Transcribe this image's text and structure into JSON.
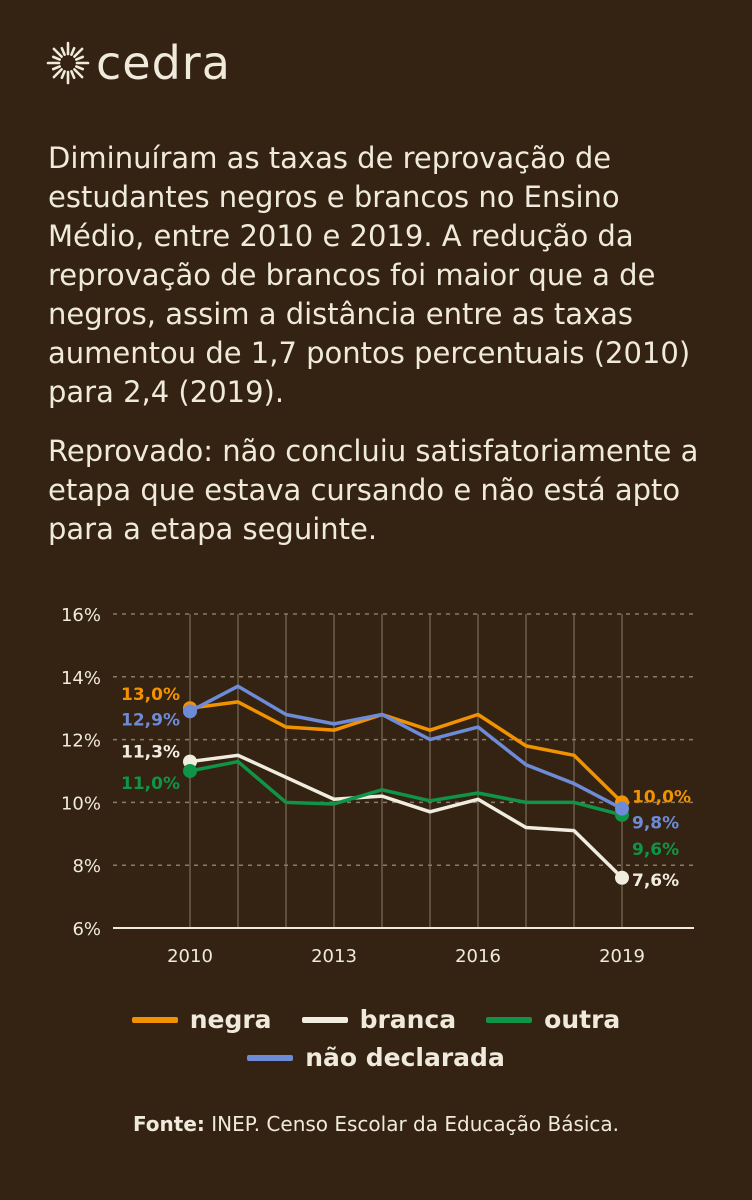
{
  "brand": {
    "name": "cedra"
  },
  "paragraphs": [
    "Diminuíram as taxas de reprovação de estudantes negros e brancos no Ensino Médio, entre 2010 e 2019. A redução da reprovação de brancos foi maior que a de negros, assim a distância entre as taxas aumentou de 1,7 pontos percentuais (2010) para 2,4 (2019).",
    "Reprovado: não concluiu satisfatoriamente a etapa que estava cursando e não está apto para a etapa seguinte."
  ],
  "chart_data": {
    "type": "line",
    "title": "",
    "xlabel": "",
    "ylabel": "",
    "x": [
      2010,
      2011,
      2012,
      2013,
      2014,
      2015,
      2016,
      2017,
      2018,
      2019
    ],
    "x_tick_labels": [
      "2010",
      "2013",
      "2016",
      "2019"
    ],
    "y_tick_labels": [
      "16%",
      "14%",
      "12%",
      "10%",
      "8%",
      "6%"
    ],
    "yticks": [
      16,
      14,
      12,
      10,
      8,
      6
    ],
    "ylim": [
      6,
      16
    ],
    "grid": "horizontal dashed, vertical per year",
    "legend_position": "bottom",
    "series": [
      {
        "name": "negra",
        "color": "#f39200",
        "values": [
          13.0,
          13.2,
          12.4,
          12.3,
          12.8,
          12.3,
          12.8,
          11.8,
          11.5,
          10.0
        ],
        "start_label": "13,0%",
        "end_label": "10,0%"
      },
      {
        "name": "branca",
        "color": "#f0ece0",
        "values": [
          11.3,
          11.5,
          10.8,
          10.1,
          10.2,
          9.7,
          10.1,
          9.2,
          9.1,
          7.6
        ],
        "start_label": "11,3%",
        "end_label": "7,6%"
      },
      {
        "name": "outra",
        "color": "#109447",
        "values": [
          11.0,
          11.3,
          10.0,
          9.95,
          10.4,
          10.05,
          10.3,
          10.0,
          10.0,
          9.6
        ],
        "start_label": "11,0%",
        "end_label": "9,6%"
      },
      {
        "name": "não declarada",
        "color": "#6d8bd6",
        "values": [
          12.9,
          13.7,
          12.8,
          12.5,
          12.8,
          12.0,
          12.4,
          11.2,
          10.6,
          9.8
        ],
        "start_label": "12,9%",
        "end_label": "9,8%"
      }
    ]
  },
  "source": {
    "label": "Fonte:",
    "text": " INEP. Censo Escolar da Educação Básica."
  }
}
